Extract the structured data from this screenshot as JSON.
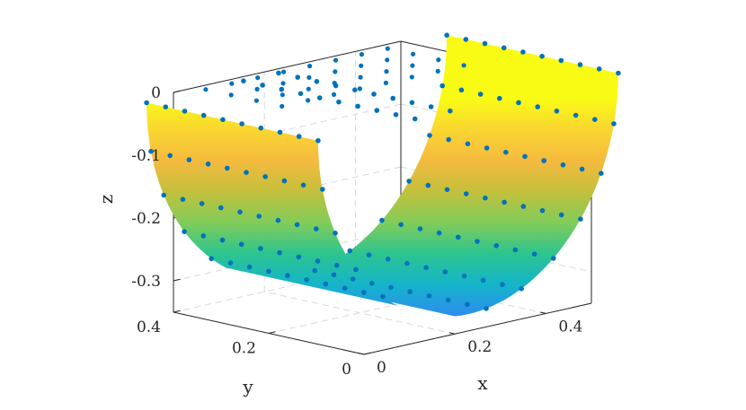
{
  "chart_data": {
    "type": "surface3d",
    "title": "",
    "xlabel": "x",
    "ylabel": "y",
    "zlabel": "z",
    "xlim": [
      0,
      0.5
    ],
    "ylim": [
      0,
      0.4
    ],
    "zlim": [
      -0.35,
      0
    ],
    "x_ticks": [
      "0",
      "0.2",
      "0.4"
    ],
    "y_ticks": [
      "0",
      "0.2",
      "0.4"
    ],
    "z_ticks": [
      "0",
      "-0.1",
      "-0.2",
      "-0.3"
    ],
    "x_tick_values": [
      0,
      0.2,
      0.4
    ],
    "y_tick_values": [
      0,
      0.2,
      0.4
    ],
    "z_tick_values": [
      0,
      -0.1,
      -0.2,
      -0.3
    ],
    "grid": true,
    "colormap": "parula",
    "colormap_stops": [
      "#3e26a8",
      "#4a4ef6",
      "#2e8cef",
      "#14b5ca",
      "#2cc48f",
      "#81cc59",
      "#c3c03c",
      "#f5ba3e",
      "#f9d630",
      "#f9fb15"
    ],
    "marker_color": "#0072bd",
    "surface": {
      "description_shape": "half cylinder (trough) z = -sqrt(R^2 - (x - xc)^2) with an angular gap",
      "radius": 0.33,
      "x_center": 0.25,
      "y_range": [
        0.02,
        0.38
      ],
      "theta_gap_degrees": [
        95,
        118
      ]
    },
    "scatter": {
      "description_shape": "grid of points on the trough surface and on the z=0 plane",
      "x_count": 14,
      "y_count": 10
    }
  }
}
